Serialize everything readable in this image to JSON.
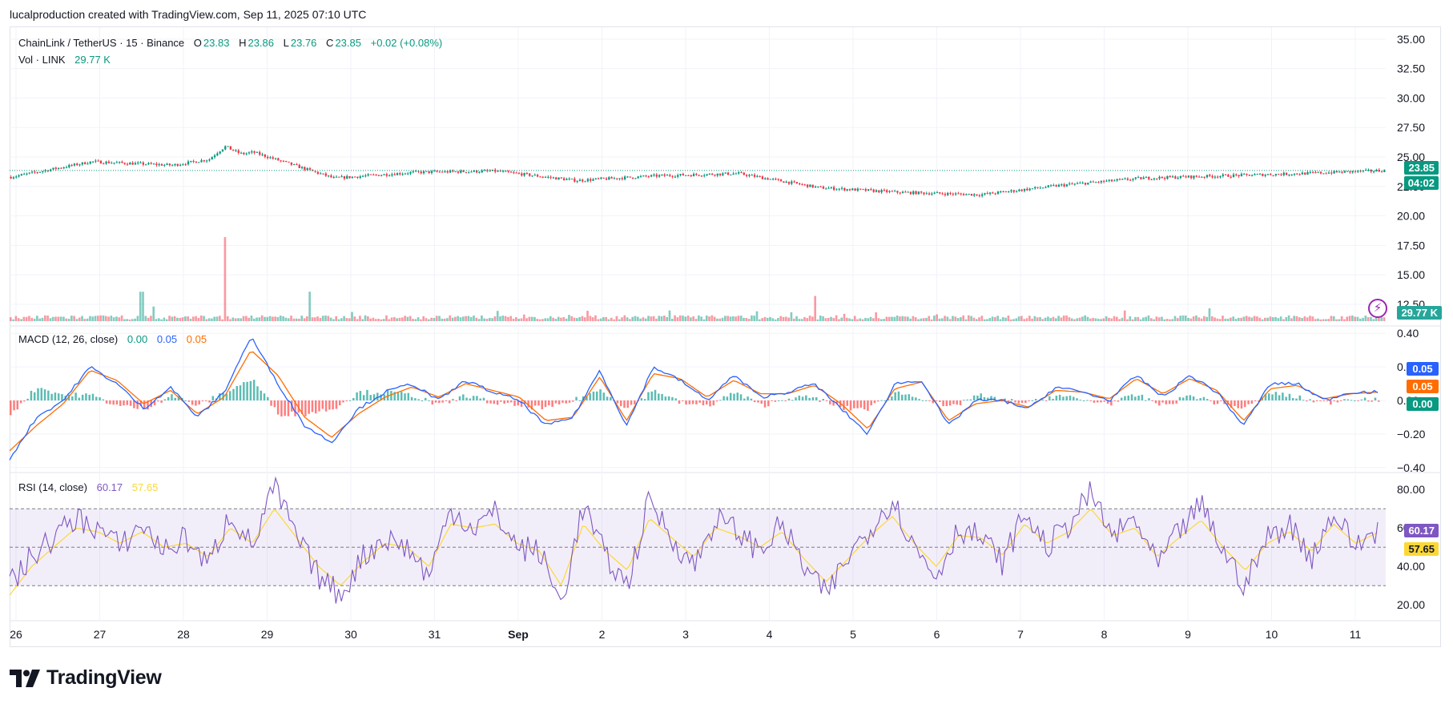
{
  "header": {
    "text": "lucalproduction created with TradingView.com, Sep 11, 2025 07:10 UTC"
  },
  "colors": {
    "up": "#089981",
    "down": "#f23645",
    "macd": "#2962ff",
    "signal": "#ff6d00",
    "rsi": "#7e57c2",
    "rsi_ma": "#fdd835",
    "price_tag": "#089981"
  },
  "price_legend": {
    "symbol": "ChainLink / TetherUS · 15 · Binance",
    "o_label": "O",
    "o": "23.83",
    "h_label": "H",
    "h": "23.86",
    "l_label": "L",
    "l": "23.76",
    "c_label": "C",
    "c": "23.85",
    "change": "+0.02 (+0.08%)"
  },
  "vol_legend": {
    "label": "Vol · LINK",
    "value": "29.77 K"
  },
  "macd_legend": {
    "label": "MACD (12, 26, close)",
    "hist": "0.00",
    "macd": "0.05",
    "signal": "0.05"
  },
  "rsi_legend": {
    "label": "RSI (14, close)",
    "rsi": "60.17",
    "ma": "57.65"
  },
  "tags": {
    "price": "23.85",
    "countdown": "04:02",
    "volume": "29.77 K",
    "macd": "0.05",
    "signal": "0.05",
    "hist": "0.00",
    "rsi": "60.17",
    "rsi_ma": "57.65"
  },
  "logo": {
    "text": "TradingView"
  },
  "chart_data": [
    {
      "type": "candlestick",
      "title": "ChainLink / TetherUS · 15 · Binance",
      "interval": "15",
      "y_ticks": [
        "35.00",
        "32.50",
        "30.00",
        "27.50",
        "25.00",
        "22.50",
        "20.00",
        "17.50",
        "15.00",
        "12.50"
      ],
      "ylim": [
        11.0,
        35.6
      ],
      "last_price": 23.85,
      "ohlc_last": {
        "open": 23.83,
        "high": 23.86,
        "low": 23.76,
        "close": 23.85
      },
      "x_ticks": [
        "26",
        "27",
        "28",
        "29",
        "30",
        "31",
        "Sep",
        "2",
        "3",
        "4",
        "5",
        "6",
        "7",
        "8",
        "9",
        "10",
        "11"
      ],
      "close_path_by_day": [
        23.3,
        24.6,
        24.3,
        25.4,
        23.2,
        23.7,
        23.8,
        23.0,
        23.4,
        23.6,
        22.4,
        22.0,
        21.8,
        22.6,
        23.2,
        23.4,
        23.6,
        23.85
      ],
      "spike": {
        "day": "28",
        "high": 26.0
      }
    },
    {
      "type": "bar",
      "title": "Vol · LINK",
      "last": "29.77 K",
      "relative_spikes": [
        {
          "day": "27",
          "rel": 0.35
        },
        {
          "day": "28",
          "rel": 1.0
        },
        {
          "day": "29",
          "rel": 0.35
        },
        {
          "day": "4",
          "rel": 0.3
        }
      ]
    },
    {
      "type": "line",
      "title": "MACD (12, 26, close)",
      "y_ticks": [
        "0.40",
        "0.20",
        "0.00",
        "−0.20",
        "−0.40"
      ],
      "ylim": [
        -0.42,
        0.42
      ],
      "series": [
        {
          "name": "MACD",
          "color": "#2962ff",
          "values": [
            -0.35,
            -0.1,
            0.0,
            0.2,
            0.1,
            -0.05,
            0.08,
            -0.1,
            0.05,
            0.38,
            0.1,
            -0.15,
            -0.25,
            -0.05,
            0.05,
            0.1,
            0.0,
            0.12,
            0.05,
            0.0,
            -0.15,
            -0.1,
            0.18,
            -0.15,
            0.2,
            0.12,
            0.0,
            0.15,
            0.02,
            0.05,
            0.1,
            -0.05,
            -0.2,
            0.1,
            0.12,
            -0.15,
            0.0,
            0.0,
            -0.05,
            0.08,
            0.05,
            0.0,
            0.15,
            0.02,
            0.15,
            0.05,
            -0.15,
            0.1,
            0.1,
            0.0,
            0.05,
            0.05
          ]
        },
        {
          "name": "Signal",
          "color": "#ff6d00",
          "values": [
            -0.3,
            -0.15,
            -0.02,
            0.18,
            0.12,
            -0.02,
            0.06,
            -0.08,
            0.02,
            0.3,
            0.15,
            -0.1,
            -0.22,
            -0.08,
            0.02,
            0.08,
            0.02,
            0.1,
            0.06,
            0.02,
            -0.12,
            -0.1,
            0.14,
            -0.12,
            0.16,
            0.13,
            0.02,
            0.12,
            0.04,
            0.04,
            0.09,
            -0.02,
            -0.17,
            0.07,
            0.11,
            -0.12,
            -0.02,
            0.0,
            -0.04,
            0.06,
            0.05,
            0.01,
            0.13,
            0.04,
            0.13,
            0.06,
            -0.12,
            0.07,
            0.09,
            0.01,
            0.04,
            0.05
          ]
        }
      ],
      "last": {
        "macd": 0.05,
        "signal": 0.05,
        "hist": 0.0
      }
    },
    {
      "type": "line",
      "title": "RSI (14, close)",
      "y_ticks": [
        "80.00",
        "60.00",
        "40.00",
        "20.00"
      ],
      "ylim": [
        13,
        88
      ],
      "bands": {
        "upper": 70,
        "middle": 50,
        "lower": 30
      },
      "series": [
        {
          "name": "RSI",
          "color": "#7e57c2",
          "values": [
            30,
            45,
            55,
            65,
            60,
            50,
            62,
            48,
            55,
            40,
            68,
            50,
            82,
            55,
            35,
            25,
            45,
            55,
            50,
            35,
            70,
            60,
            68,
            50,
            48,
            20,
            72,
            45,
            30,
            75,
            55,
            40,
            65,
            58,
            48,
            62,
            40,
            25,
            45,
            60,
            75,
            50,
            35,
            60,
            55,
            42,
            68,
            50,
            62,
            78,
            55,
            65,
            40,
            58,
            72,
            48,
            30,
            55,
            62,
            45,
            68,
            50,
            60
          ]
        },
        {
          "name": "RSI-based MA",
          "color": "#fdd835",
          "values": [
            25,
            40,
            50,
            60,
            58,
            52,
            58,
            50,
            52,
            45,
            60,
            52,
            70,
            55,
            40,
            30,
            42,
            52,
            50,
            40,
            62,
            60,
            62,
            52,
            48,
            30,
            62,
            48,
            38,
            65,
            55,
            45,
            60,
            56,
            50,
            58,
            44,
            32,
            44,
            56,
            66,
            52,
            40,
            56,
            55,
            46,
            62,
            52,
            58,
            70,
            56,
            60,
            45,
            55,
            64,
            50,
            38,
            52,
            58,
            48,
            62,
            52,
            57.65
          ]
        }
      ],
      "last": {
        "rsi": 60.17,
        "ma": 57.65
      }
    }
  ]
}
